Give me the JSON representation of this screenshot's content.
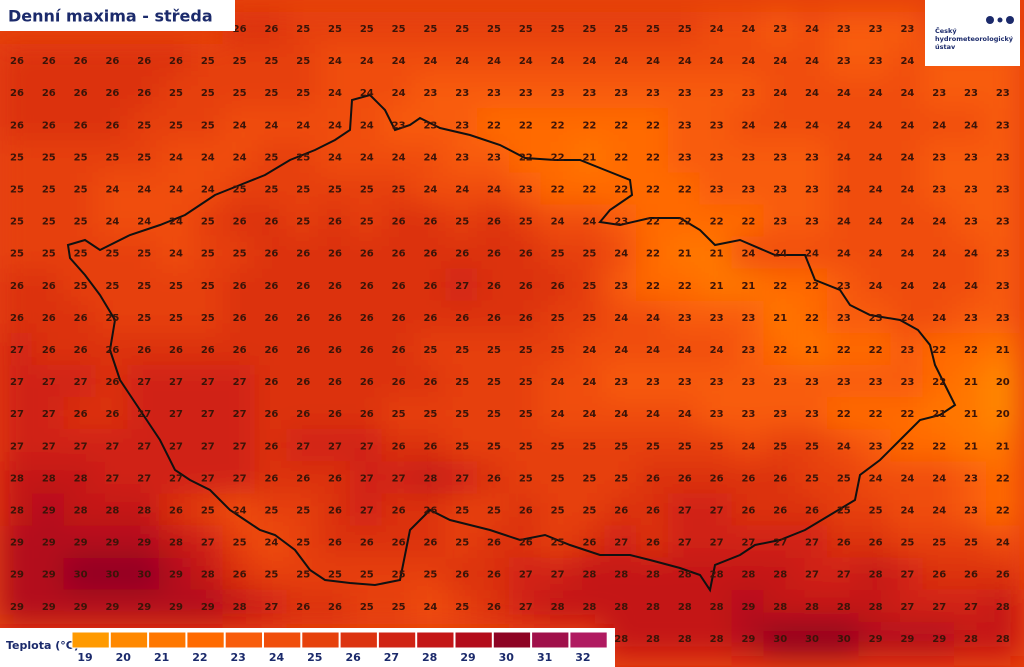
{
  "header": {
    "title": "Denní maxima - středa"
  },
  "logo": {
    "lines": [
      "Český",
      "hydrometeorologický",
      "ústav"
    ]
  },
  "legend": {
    "title": "Teplota (°C)",
    "items": [
      {
        "value": 19,
        "color": "#ff9a00"
      },
      {
        "value": 20,
        "color": "#ff8800"
      },
      {
        "value": 21,
        "color": "#ff7700"
      },
      {
        "value": 22,
        "color": "#ff6a00"
      },
      {
        "value": 23,
        "color": "#f85c0c"
      },
      {
        "value": 24,
        "color": "#f04e0c"
      },
      {
        "value": 25,
        "color": "#e6410c"
      },
      {
        "value": 26,
        "color": "#dc3310"
      },
      {
        "value": 27,
        "color": "#d02414"
      },
      {
        "value": 28,
        "color": "#c41616"
      },
      {
        "value": 29,
        "color": "#b30c1a"
      },
      {
        "value": 30,
        "color": "#8e0424"
      },
      {
        "value": 31,
        "color": "#a0104a"
      },
      {
        "value": 32,
        "color": "#b01a60"
      }
    ]
  },
  "grid": {
    "rows": [
      [
        null,
        null,
        null,
        null,
        null,
        null,
        null,
        26,
        26,
        25,
        25,
        25,
        25,
        25,
        25,
        25,
        25,
        25,
        25,
        25,
        25,
        25,
        24,
        24,
        23,
        24,
        23,
        23,
        23,
        null,
        null,
        null
      ],
      [
        26,
        26,
        26,
        26,
        26,
        26,
        25,
        25,
        25,
        25,
        24,
        24,
        24,
        24,
        24,
        24,
        24,
        24,
        24,
        24,
        24,
        24,
        24,
        24,
        24,
        24,
        23,
        23,
        24,
        23,
        23,
        23
      ],
      [
        26,
        26,
        26,
        26,
        26,
        25,
        25,
        25,
        25,
        25,
        24,
        24,
        24,
        23,
        23,
        23,
        23,
        23,
        23,
        23,
        23,
        23,
        23,
        23,
        24,
        24,
        24,
        24,
        24,
        23,
        23,
        23
      ],
      [
        26,
        26,
        26,
        26,
        25,
        25,
        25,
        24,
        24,
        24,
        24,
        24,
        23,
        23,
        23,
        22,
        22,
        22,
        22,
        22,
        22,
        23,
        23,
        24,
        24,
        24,
        24,
        24,
        24,
        24,
        24,
        23
      ],
      [
        25,
        25,
        25,
        25,
        25,
        24,
        24,
        24,
        25,
        25,
        24,
        24,
        24,
        24,
        23,
        23,
        22,
        22,
        21,
        22,
        22,
        23,
        23,
        23,
        23,
        23,
        24,
        24,
        24,
        23,
        23,
        23
      ],
      [
        25,
        25,
        25,
        24,
        24,
        24,
        24,
        25,
        25,
        25,
        25,
        25,
        25,
        24,
        24,
        24,
        23,
        22,
        22,
        22,
        22,
        22,
        23,
        23,
        23,
        23,
        24,
        24,
        24,
        23,
        23,
        23
      ],
      [
        25,
        25,
        25,
        24,
        24,
        24,
        25,
        26,
        26,
        25,
        26,
        25,
        26,
        26,
        25,
        26,
        25,
        24,
        24,
        23,
        22,
        22,
        22,
        22,
        23,
        23,
        24,
        24,
        24,
        24,
        23,
        23
      ],
      [
        25,
        25,
        25,
        25,
        25,
        24,
        25,
        25,
        26,
        26,
        26,
        26,
        26,
        26,
        26,
        26,
        26,
        25,
        25,
        24,
        22,
        21,
        21,
        24,
        24,
        24,
        24,
        24,
        24,
        24,
        24,
        23
      ],
      [
        26,
        26,
        25,
        25,
        25,
        25,
        25,
        26,
        26,
        26,
        26,
        26,
        26,
        26,
        27,
        26,
        26,
        26,
        25,
        23,
        22,
        22,
        21,
        21,
        22,
        22,
        23,
        24,
        24,
        24,
        24,
        23
      ],
      [
        26,
        26,
        26,
        25,
        25,
        25,
        25,
        26,
        26,
        26,
        26,
        26,
        26,
        26,
        26,
        26,
        26,
        25,
        25,
        24,
        24,
        23,
        23,
        23,
        21,
        22,
        23,
        23,
        24,
        24,
        23,
        23
      ],
      [
        27,
        26,
        26,
        26,
        26,
        26,
        26,
        26,
        26,
        26,
        26,
        26,
        26,
        25,
        25,
        25,
        25,
        25,
        24,
        24,
        24,
        24,
        24,
        23,
        22,
        21,
        22,
        22,
        23,
        22,
        22,
        21
      ],
      [
        27,
        27,
        27,
        26,
        27,
        27,
        27,
        27,
        26,
        26,
        26,
        26,
        26,
        26,
        25,
        25,
        25,
        24,
        24,
        23,
        23,
        23,
        23,
        23,
        23,
        23,
        23,
        23,
        23,
        22,
        21,
        20
      ],
      [
        27,
        27,
        26,
        26,
        27,
        27,
        27,
        27,
        26,
        26,
        26,
        26,
        25,
        25,
        25,
        25,
        25,
        24,
        24,
        24,
        24,
        24,
        23,
        23,
        23,
        23,
        22,
        22,
        22,
        21,
        21,
        20
      ],
      [
        27,
        27,
        27,
        27,
        27,
        27,
        27,
        27,
        26,
        27,
        27,
        27,
        26,
        26,
        25,
        25,
        25,
        25,
        25,
        25,
        25,
        25,
        25,
        24,
        25,
        25,
        24,
        23,
        22,
        22,
        21,
        21
      ],
      [
        28,
        28,
        28,
        27,
        27,
        27,
        27,
        27,
        26,
        26,
        26,
        27,
        27,
        28,
        27,
        26,
        25,
        25,
        25,
        25,
        26,
        26,
        26,
        26,
        26,
        25,
        25,
        24,
        24,
        24,
        23,
        22
      ],
      [
        28,
        29,
        28,
        28,
        28,
        26,
        25,
        24,
        25,
        25,
        26,
        27,
        26,
        26,
        25,
        25,
        26,
        25,
        25,
        26,
        26,
        27,
        27,
        26,
        26,
        26,
        25,
        25,
        24,
        24,
        23,
        22
      ],
      [
        29,
        29,
        29,
        29,
        29,
        28,
        27,
        25,
        24,
        25,
        26,
        26,
        26,
        26,
        25,
        26,
        26,
        25,
        26,
        27,
        26,
        27,
        27,
        27,
        27,
        27,
        26,
        26,
        25,
        25,
        25,
        24
      ],
      [
        29,
        29,
        30,
        30,
        30,
        29,
        28,
        26,
        25,
        25,
        25,
        25,
        25,
        25,
        26,
        26,
        27,
        27,
        28,
        28,
        28,
        28,
        28,
        28,
        28,
        27,
        27,
        28,
        27,
        26,
        26,
        26
      ],
      [
        29,
        29,
        29,
        29,
        29,
        29,
        29,
        28,
        27,
        26,
        26,
        25,
        25,
        24,
        25,
        26,
        27,
        28,
        28,
        28,
        28,
        28,
        28,
        29,
        28,
        28,
        28,
        28,
        27,
        27,
        27,
        28
      ],
      [
        null,
        null,
        null,
        null,
        null,
        null,
        null,
        null,
        null,
        null,
        null,
        null,
        null,
        null,
        null,
        null,
        null,
        null,
        null,
        28,
        28,
        28,
        28,
        29,
        30,
        30,
        30,
        29,
        29,
        29,
        28,
        28
      ]
    ]
  }
}
